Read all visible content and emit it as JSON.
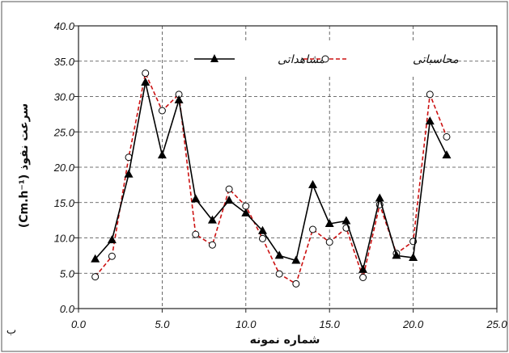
{
  "chart_data": {
    "type": "line",
    "xlabel": "شماره نمونه",
    "ylabel": "سرعت نفوذ (Cm.h⁻¹)",
    "corner_label": "ب",
    "xlim": [
      0,
      25
    ],
    "ylim": [
      0,
      40
    ],
    "x_ticks": [
      "0.0",
      "5.0",
      "10.0",
      "15.0",
      "20.0",
      "25.0"
    ],
    "y_ticks": [
      "0.0",
      "5.0",
      "10.0",
      "15.0",
      "20.0",
      "25.0",
      "30.0",
      "35.0",
      "40.0"
    ],
    "grid": true,
    "legend_position": "top-right",
    "x": [
      1,
      2,
      3,
      4,
      5,
      6,
      7,
      8,
      9,
      10,
      11,
      12,
      13,
      14,
      15,
      16,
      17,
      18,
      19,
      20,
      21,
      22
    ],
    "series": [
      {
        "name": "مشاهداتی",
        "color": "#000000",
        "marker": "triangle",
        "line": "solid",
        "values": [
          7.0,
          9.7,
          19.0,
          32.0,
          21.7,
          29.5,
          15.5,
          12.5,
          15.3,
          13.5,
          11.0,
          7.5,
          6.8,
          17.5,
          12.0,
          12.4,
          5.5,
          15.6,
          7.5,
          7.2,
          26.5,
          21.7
        ]
      },
      {
        "name": "محاسباتی",
        "color": "#cc1111",
        "marker": "circle",
        "line": "dashed",
        "values": [
          4.5,
          7.4,
          21.4,
          33.3,
          28.0,
          30.3,
          10.5,
          9.0,
          16.9,
          14.5,
          9.9,
          4.9,
          3.5,
          11.2,
          9.4,
          11.4,
          4.4,
          14.7,
          7.8,
          9.5,
          30.3,
          24.3
        ]
      }
    ]
  }
}
